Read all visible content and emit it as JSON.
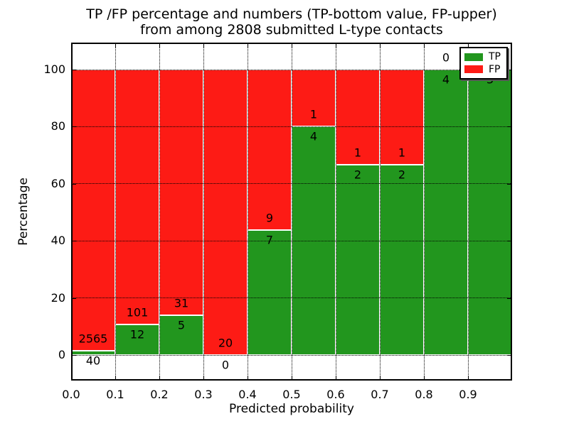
{
  "chart": {
    "title_line1": "TP /FP percentage and numbers (TP-bottom value, FP-upper)",
    "title_line2": "from among 2808 submitted L-type contacts",
    "xlabel": "Predicted probability",
    "ylabel": "Percentage"
  },
  "chart_data": {
    "type": "bar",
    "stacked": true,
    "normalized_to_percent": true,
    "title": "TP /FP percentage and numbers (TP-bottom value, FP-upper) from among 2808 submitted L-type contacts",
    "xlabel": "Predicted probability",
    "ylabel": "Percentage",
    "total_contacts": 2808,
    "bin_edges": [
      0.0,
      0.1,
      0.2,
      0.3,
      0.4,
      0.5,
      0.6,
      0.7,
      0.8,
      0.9,
      1.0
    ],
    "x_tick_labels": [
      "0.0",
      "0.1",
      "0.2",
      "0.3",
      "0.4",
      "0.5",
      "0.6",
      "0.7",
      "0.8",
      "0.9"
    ],
    "y_ticks": [
      0,
      20,
      40,
      60,
      80,
      100
    ],
    "ylim": [
      -9,
      109.5
    ],
    "xlim": [
      0,
      1
    ],
    "grid": "dotted",
    "bar_edge_color": "#ffffff",
    "series": [
      {
        "name": "TP",
        "color": "#22961e",
        "counts": [
          40,
          12,
          5,
          0,
          7,
          4,
          2,
          2,
          4,
          3
        ],
        "percent": [
          1.5,
          10.6,
          13.9,
          0.0,
          43.8,
          80.0,
          66.7,
          66.7,
          100.0,
          100.0
        ]
      },
      {
        "name": "FP",
        "color": "#fd1b15",
        "counts": [
          2565,
          101,
          31,
          20,
          9,
          1,
          1,
          1,
          0,
          0
        ],
        "percent": [
          98.5,
          89.4,
          86.1,
          100.0,
          56.2,
          20.0,
          33.3,
          33.3,
          0.0,
          0.0
        ]
      }
    ],
    "legend": {
      "position": "upper right",
      "entries": [
        "TP",
        "FP"
      ]
    }
  }
}
